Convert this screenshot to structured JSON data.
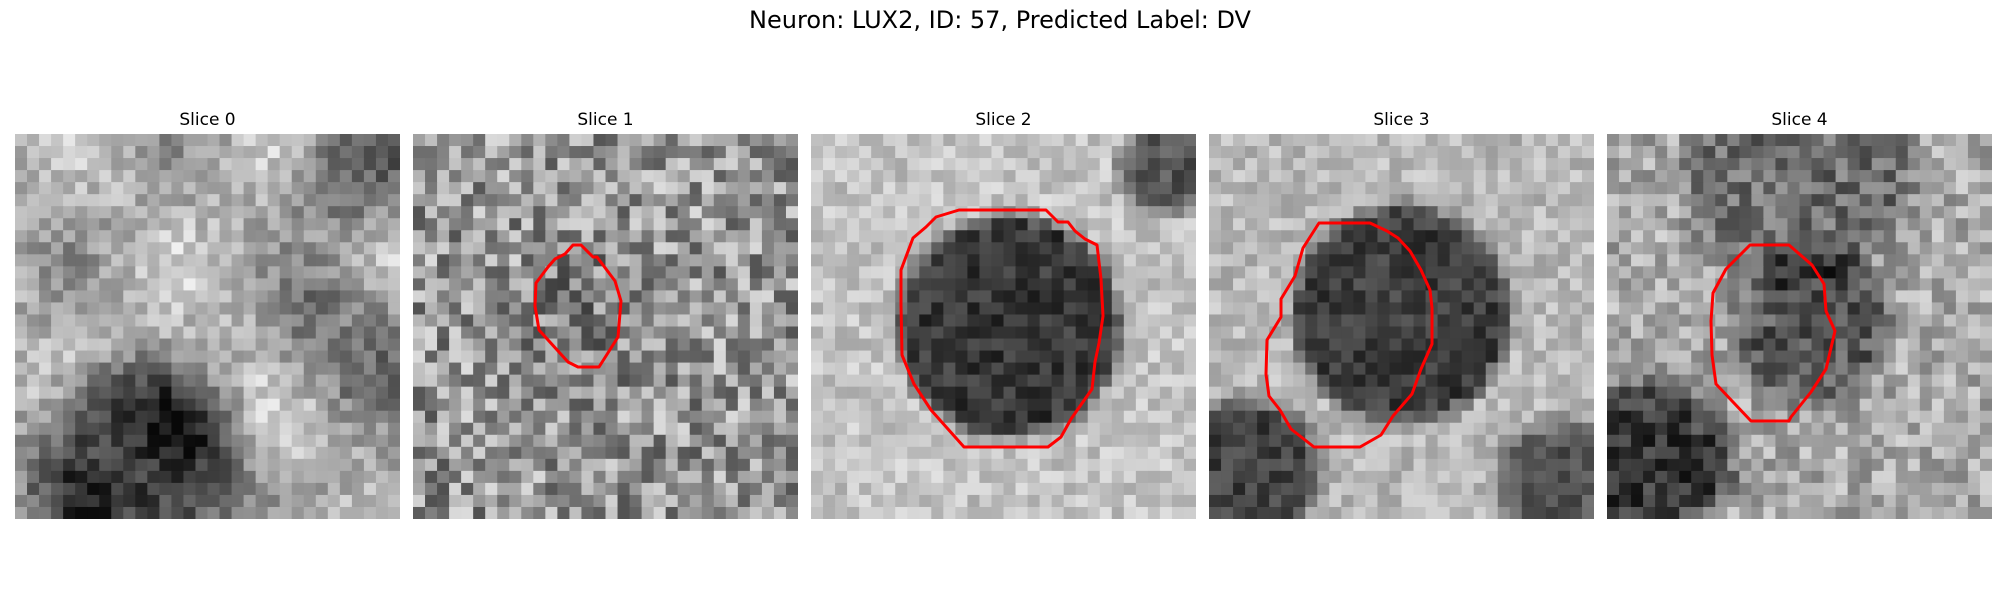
{
  "figure": {
    "title": "Neuron: LUX2, ID: 57, Predicted Label: DV"
  },
  "colors": {
    "contour": "#ff0000",
    "background": "#ffffff",
    "colormap": "gray"
  },
  "slices": [
    {
      "title": "Slice 0",
      "has_contour": false
    },
    {
      "title": "Slice 1",
      "has_contour": true
    },
    {
      "title": "Slice 2",
      "has_contour": true
    },
    {
      "title": "Slice 3",
      "has_contour": true
    },
    {
      "title": "Slice 4",
      "has_contour": true
    }
  ]
}
